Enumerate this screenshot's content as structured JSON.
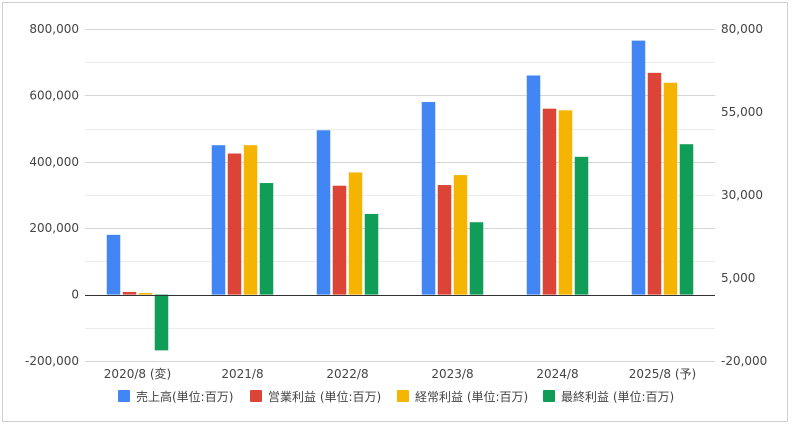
{
  "chart_data": {
    "type": "bar",
    "categories": [
      "2020/8 (変)",
      "2021/8",
      "2022/8",
      "2023/8",
      "2024/8",
      "2025/8 (予)"
    ],
    "y_left": {
      "range": [
        -200000,
        800000
      ],
      "ticks": [
        "800,000",
        "600,000",
        "400,000",
        "200,000",
        "0",
        "-200,000"
      ],
      "tick_values": [
        800000,
        600000,
        400000,
        200000,
        0,
        -200000
      ]
    },
    "y_right": {
      "range": [
        -20000,
        80000
      ],
      "ticks": [
        "80,000",
        "55,000",
        "30,000",
        "5,000",
        "-20,000"
      ],
      "tick_values": [
        80000,
        55000,
        30000,
        5000,
        -20000
      ]
    },
    "grid": true,
    "legend_position": "bottom",
    "series": [
      {
        "name": "売上高(単位:百万)",
        "color": "#4285f4",
        "axis": "left",
        "values": [
          180000,
          450000,
          495000,
          580000,
          660000,
          765000
        ]
      },
      {
        "name": "営業利益 (単位:百万)",
        "color": "#db4437",
        "axis": "left",
        "values": [
          8000,
          425000,
          328000,
          330000,
          560000,
          668000
        ]
      },
      {
        "name": "経常利益 (単位:百万)",
        "color": "#f4b400",
        "axis": "left",
        "values": [
          5000,
          450000,
          368000,
          360000,
          555000,
          638000
        ]
      },
      {
        "name": "最終利益 (単位:百万)",
        "color": "#0f9d58",
        "axis": "left",
        "values": [
          -168000,
          336000,
          243000,
          218000,
          415000,
          453000
        ]
      }
    ]
  }
}
